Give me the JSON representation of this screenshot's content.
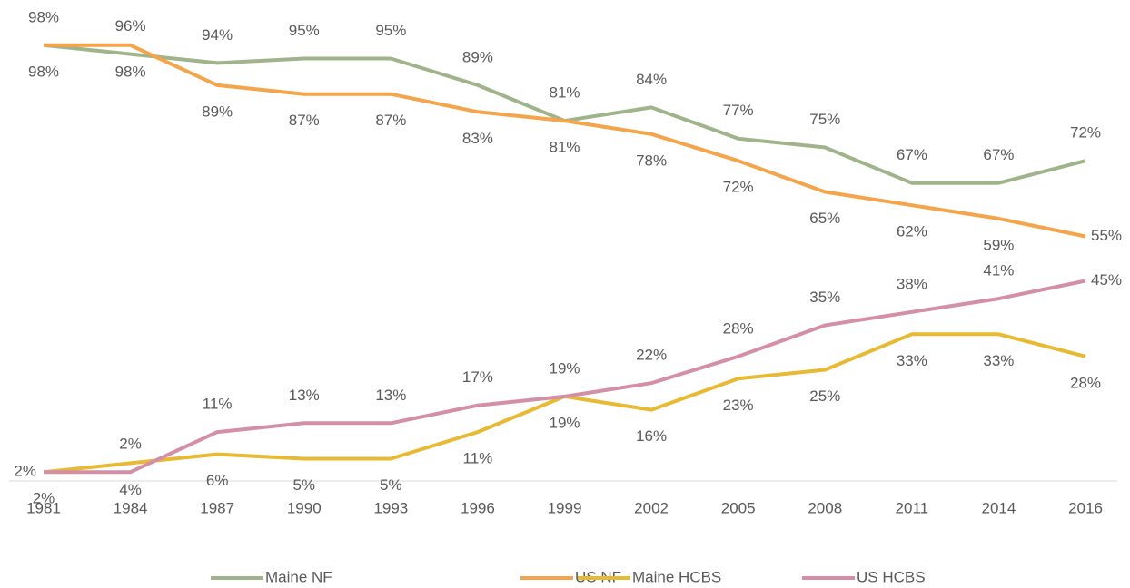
{
  "chart_data": {
    "type": "line",
    "categories": [
      "1981",
      "1984",
      "1987",
      "1990",
      "1993",
      "1996",
      "1999",
      "2002",
      "2005",
      "2008",
      "2011",
      "2014",
      "2016"
    ],
    "ylim": [
      0,
      100
    ],
    "series": [
      {
        "name": "Maine NF",
        "color": "#9fb48a",
        "values": [
          98,
          96,
          94,
          95,
          95,
          89,
          81,
          84,
          77,
          75,
          67,
          67,
          72
        ],
        "value_labels": [
          "98%",
          "96%",
          "94%",
          "95%",
          "95%",
          "89%",
          "81%",
          "84%",
          "77%",
          "75%",
          "67%",
          "67%",
          "72%"
        ]
      },
      {
        "name": "US NF",
        "color": "#f4a44a",
        "values": [
          98,
          98,
          89,
          87,
          87,
          83,
          81,
          78,
          72,
          65,
          62,
          59,
          55
        ],
        "value_labels": [
          "98%",
          "98%",
          "89%",
          "87%",
          "87%",
          "83%",
          "81%",
          "78%",
          "72%",
          "65%",
          "62%",
          "59%",
          "55%"
        ]
      },
      {
        "name": "Maine HCBS",
        "color": "#e8ba33",
        "values": [
          2,
          4,
          6,
          5,
          5,
          11,
          19,
          16,
          23,
          25,
          33,
          33,
          28
        ],
        "value_labels": [
          "2%",
          "4%",
          "6%",
          "5%",
          "5%",
          "11%",
          "19%",
          "16%",
          "23%",
          "25%",
          "33%",
          "33%",
          "28%"
        ]
      },
      {
        "name": "US HCBS",
        "color": "#d38fa5",
        "values": [
          2,
          2,
          11,
          13,
          13,
          17,
          19,
          22,
          28,
          35,
          38,
          41,
          45
        ],
        "value_labels": [
          "2%",
          "2%",
          "11%",
          "13%",
          "13%",
          "17%",
          "19%",
          "22%",
          "28%",
          "35%",
          "38%",
          "41%",
          "45%"
        ]
      }
    ]
  }
}
